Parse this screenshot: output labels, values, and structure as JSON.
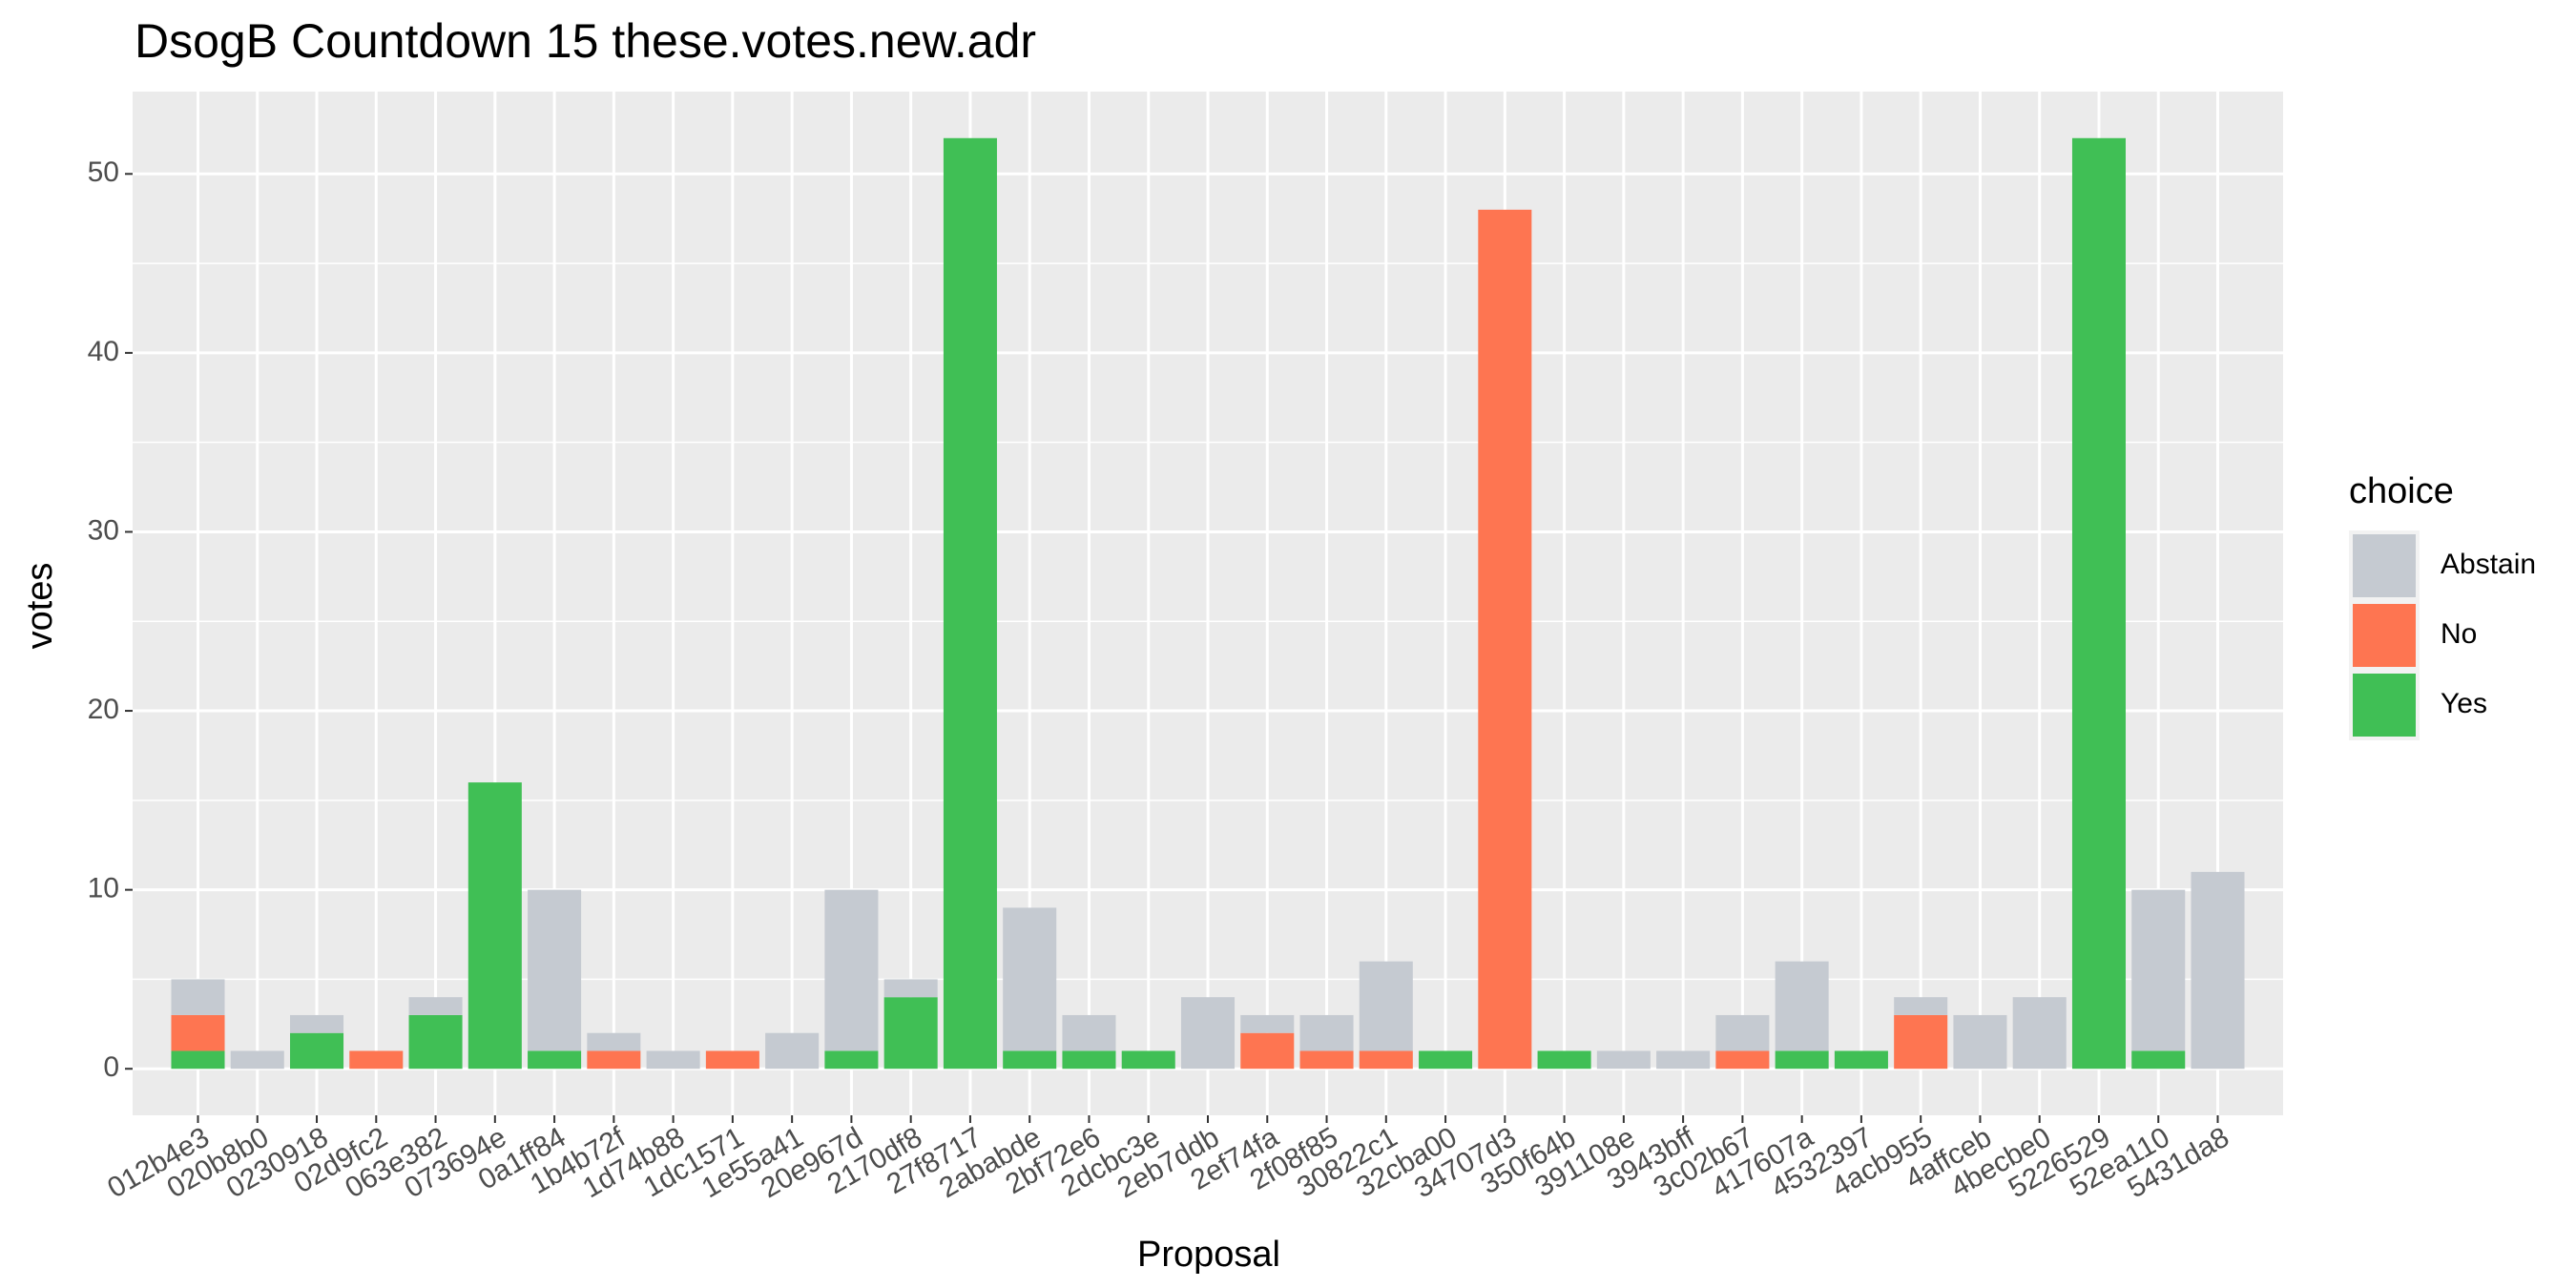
{
  "chart_data": {
    "type": "stacked_bar",
    "title": "DsogB  Countdown  15  these.votes.new.adr",
    "x_label": "Proposal",
    "y_label": "votes",
    "legend_title": "choice",
    "categories": [
      "012b4e3",
      "020b8b0",
      "0230918",
      "02d9fc2",
      "063e382",
      "073694e",
      "0a1ff84",
      "1b4b72f",
      "1d74b88",
      "1dc1571",
      "1e55a41",
      "20e967d",
      "2170df8",
      "27f8717",
      "2ababde",
      "2bf72e6",
      "2dcbc3e",
      "2eb7ddb",
      "2ef74fa",
      "2f08f85",
      "30822c1",
      "32cba00",
      "34707d3",
      "350f64b",
      "391108e",
      "3943bff",
      "3c02b67",
      "417607a",
      "4532397",
      "4acb955",
      "4affceb",
      "4becbe0",
      "5226529",
      "52ea110",
      "5431da8"
    ],
    "series": [
      {
        "name": "Abstain",
        "color": "#c5cad1",
        "values": [
          2,
          1,
          1,
          0,
          1,
          0,
          9,
          1,
          1,
          0,
          2,
          9,
          1,
          0,
          8,
          2,
          0,
          4,
          1,
          2,
          5,
          0,
          0,
          0,
          1,
          1,
          2,
          5,
          0,
          1,
          3,
          4,
          0,
          9,
          11
        ]
      },
      {
        "name": "No",
        "color": "#fe7551",
        "values": [
          2,
          0,
          0,
          1,
          0,
          0,
          0,
          1,
          0,
          1,
          0,
          0,
          0,
          0,
          0,
          0,
          0,
          0,
          2,
          1,
          1,
          0,
          48,
          0,
          0,
          0,
          1,
          0,
          0,
          3,
          0,
          0,
          0,
          0,
          0
        ]
      },
      {
        "name": "Yes",
        "color": "#40bf55",
        "values": [
          1,
          0,
          2,
          0,
          3,
          16,
          1,
          0,
          0,
          0,
          0,
          1,
          4,
          52,
          1,
          1,
          1,
          0,
          0,
          0,
          0,
          1,
          0,
          1,
          0,
          0,
          0,
          1,
          1,
          0,
          0,
          0,
          52,
          1,
          0
        ]
      }
    ],
    "ylim": [
      -2.6,
      54.6
    ],
    "yticks": [
      0,
      10,
      20,
      30,
      40,
      50
    ],
    "grid": true,
    "legend_position": "right"
  }
}
